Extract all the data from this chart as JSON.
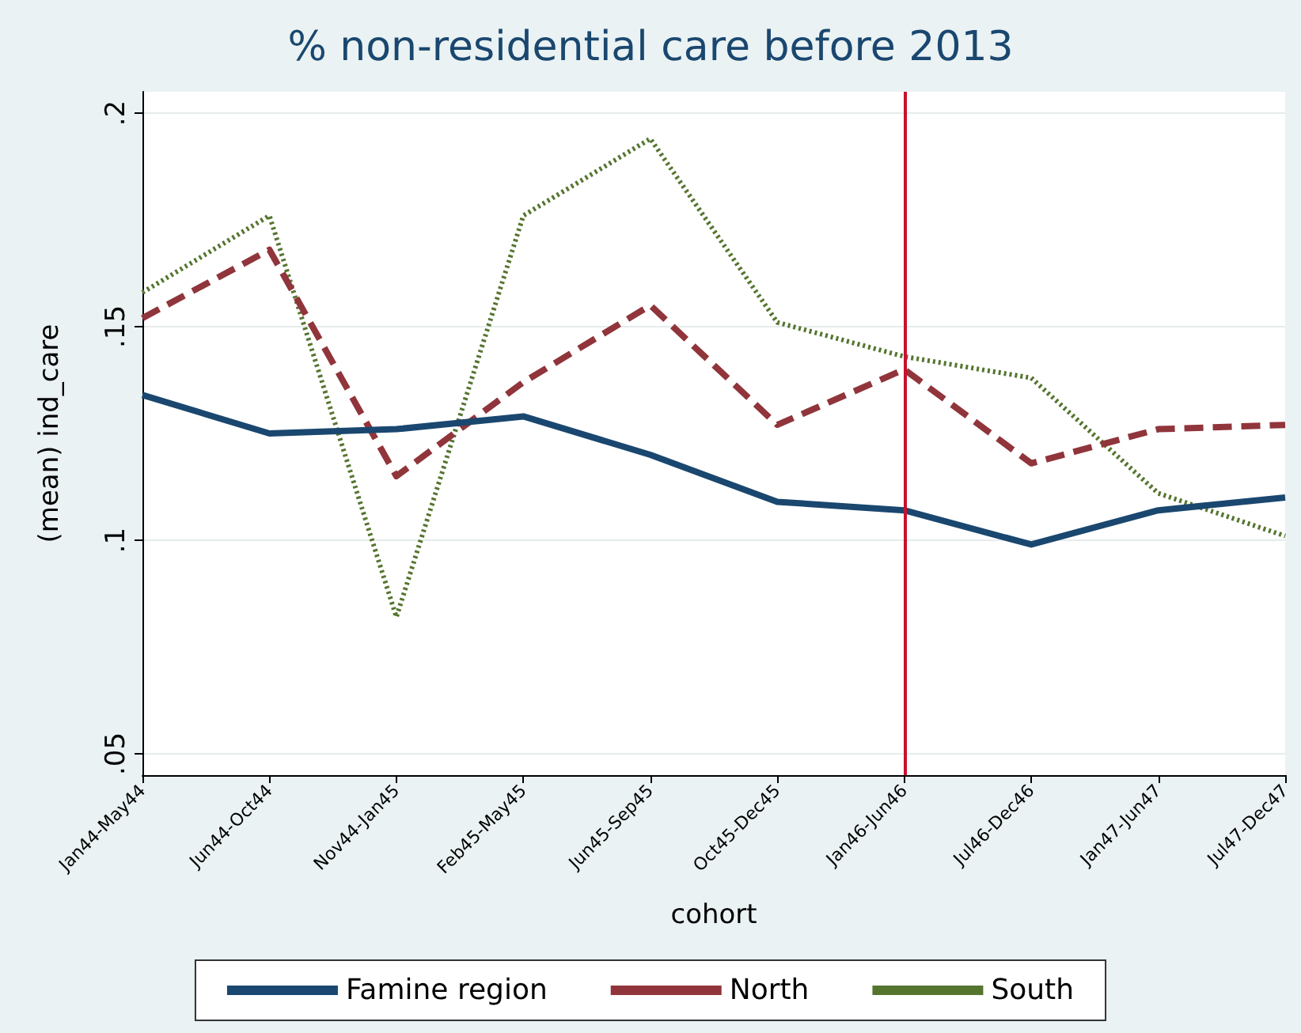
{
  "chart_data": {
    "type": "line",
    "title": "% non-residential care before 2013",
    "xlabel": "cohort",
    "ylabel": "(mean) ind_care",
    "categories": [
      "Jan44-May44",
      "Jun44-Oct44",
      "Nov44-Jan45",
      "Feb45-May45",
      "Jun45-Sep45",
      "Oct45-Dec45",
      "Jan46-Jun46",
      "Jul46-Dec46",
      "Jan47-Jun47",
      "Jul47-Dec47"
    ],
    "series": [
      {
        "name": "Famine region",
        "color": "#1a476f",
        "line_style": "solid",
        "values": [
          0.134,
          0.125,
          0.126,
          0.129,
          0.12,
          0.109,
          0.107,
          0.099,
          0.107,
          0.11
        ]
      },
      {
        "name": "North",
        "color": "#90353b",
        "line_style": "dashed",
        "values": [
          0.152,
          0.168,
          0.115,
          0.137,
          0.155,
          0.127,
          0.14,
          0.118,
          0.126,
          0.127
        ]
      },
      {
        "name": "South",
        "color": "#55752f",
        "line_style": "dotted",
        "values": [
          0.158,
          0.176,
          0.082,
          0.176,
          0.194,
          0.151,
          0.143,
          0.138,
          0.111,
          0.101
        ]
      }
    ],
    "ylim": [
      0.045,
      0.205
    ],
    "yticks": [
      {
        "value": 0.05,
        "label": ".05"
      },
      {
        "value": 0.1,
        "label": ".1"
      },
      {
        "value": 0.15,
        "label": ".15"
      },
      {
        "value": 0.2,
        "label": ".2"
      }
    ],
    "ref_lines": [
      {
        "axis": "x",
        "value": "Jan46-Jun46",
        "color": "#c8102e"
      }
    ],
    "grid": "y",
    "legend": "bottom",
    "marker": "none"
  }
}
